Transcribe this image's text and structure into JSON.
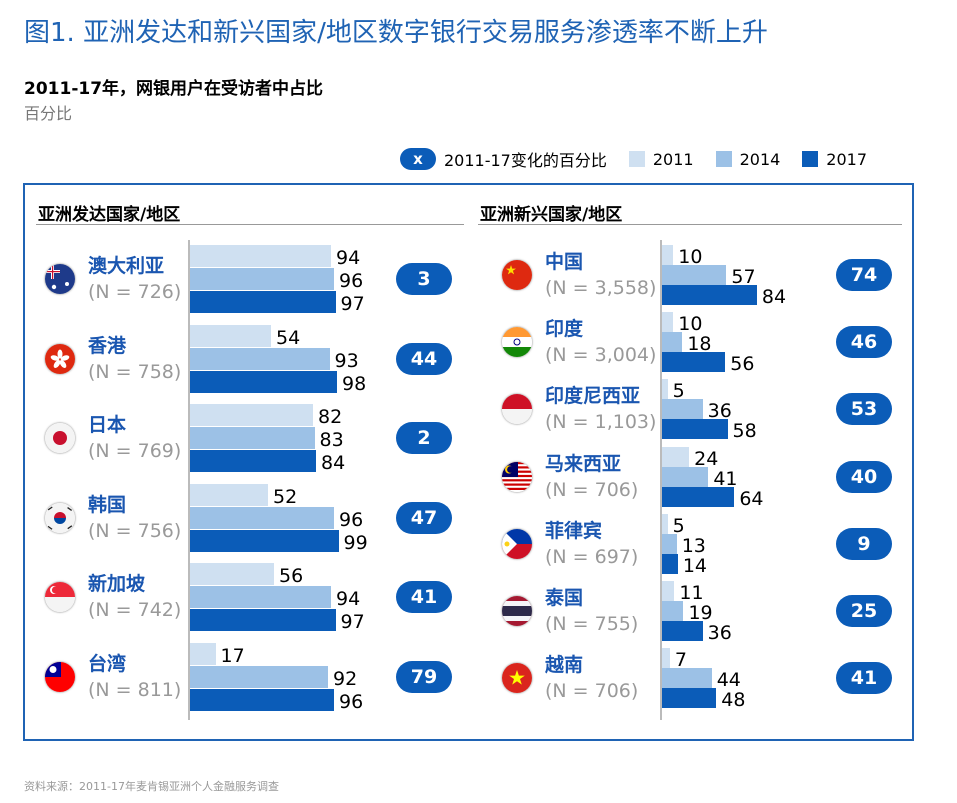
{
  "title": "图1. 亚洲发达和新兴国家/地区数字银行交易服务渗透率不断上升",
  "subtitle": "2011-17年，网银用户在受访者中占比",
  "unit": "百分比",
  "legend": {
    "badge_symbol": "x",
    "badge_label": "2011-17变化的百分比",
    "items": [
      {
        "label": "2011",
        "color": "#cfe0f1"
      },
      {
        "label": "2014",
        "color": "#9cc1e6"
      },
      {
        "label": "2017",
        "color": "#0b5cb8"
      }
    ]
  },
  "source": "资料来源：2011-17年麦肯锡亚洲个人金融服务调查",
  "chart_data": [
    {
      "type": "bar",
      "title": "亚洲发达国家/地区",
      "series_names": [
        "2011",
        "2014",
        "2017"
      ],
      "categories": [
        {
          "name": "澳大利亚",
          "n": "(N = 726)",
          "values": [
            94,
            96,
            97
          ],
          "change": "3",
          "flag": "flag-australia"
        },
        {
          "name": "香港",
          "n": "(N = 758)",
          "values": [
            54,
            93,
            98
          ],
          "change": "44",
          "flag": "flag-hongkong"
        },
        {
          "name": "日本",
          "n": "(N = 769)",
          "values": [
            82,
            83,
            84
          ],
          "change": "2",
          "flag": "flag-japan"
        },
        {
          "name": "韩国",
          "n": "(N = 756)",
          "values": [
            52,
            96,
            99
          ],
          "change": "47",
          "flag": "flag-korea"
        },
        {
          "name": "新加坡",
          "n": "(N = 742)",
          "values": [
            56,
            94,
            97
          ],
          "change": "41",
          "flag": "flag-singapore"
        },
        {
          "name": "台湾",
          "n": "(N = 811)",
          "values": [
            17,
            92,
            96
          ],
          "change": "79",
          "flag": "flag-taiwan"
        }
      ]
    },
    {
      "type": "bar",
      "title": "亚洲新兴国家/地区",
      "series_names": [
        "2011",
        "2014",
        "2017"
      ],
      "categories": [
        {
          "name": "中国",
          "n": "(N = 3,558)",
          "values": [
            10,
            57,
            84
          ],
          "change": "74",
          "flag": "flag-china"
        },
        {
          "name": "印度",
          "n": "(N = 3,004)",
          "values": [
            10,
            18,
            56
          ],
          "change": "46",
          "flag": "flag-india"
        },
        {
          "name": "印度尼西亚",
          "n": "(N = 1,103)",
          "values": [
            5,
            36,
            58
          ],
          "change": "53",
          "flag": "flag-indonesia"
        },
        {
          "name": "马来西亚",
          "n": "(N = 706)",
          "values": [
            24,
            41,
            64
          ],
          "change": "40",
          "flag": "flag-malaysia"
        },
        {
          "name": "菲律宾",
          "n": "(N = 697)",
          "values": [
            5,
            13,
            14
          ],
          "change": "9",
          "flag": "flag-philippines"
        },
        {
          "name": "泰国",
          "n": "(N = 755)",
          "values": [
            11,
            19,
            36
          ],
          "change": "25",
          "flag": "flag-thailand"
        },
        {
          "name": "越南",
          "n": "(N = 706)",
          "values": [
            7,
            44,
            48
          ],
          "change": "41",
          "flag": "flag-vietnam"
        }
      ]
    }
  ]
}
